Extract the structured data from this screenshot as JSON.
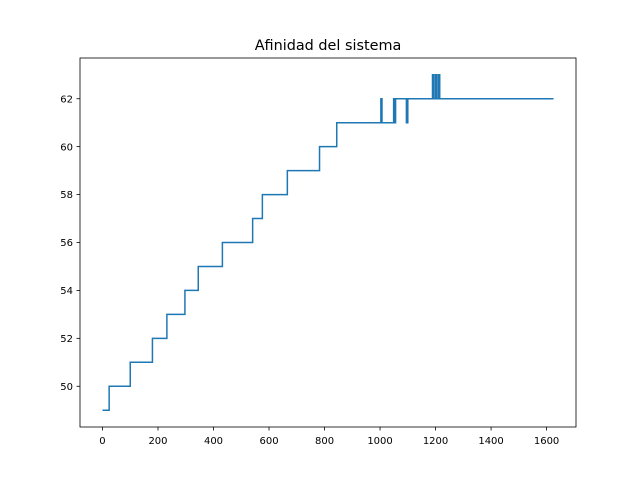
{
  "chart_data": {
    "type": "line",
    "title": "Afinidad del sistema",
    "xlabel": "",
    "ylabel": "",
    "xlim": [
      -81,
      1706
    ],
    "ylim": [
      48.3,
      63.7
    ],
    "xticks": [
      0,
      200,
      400,
      600,
      800,
      1000,
      1200,
      1400,
      1600
    ],
    "xtick_labels": [
      "0",
      "200",
      "400",
      "600",
      "800",
      "1000",
      "1200",
      "1400",
      "1600"
    ],
    "yticks": [
      50,
      52,
      54,
      56,
      58,
      60,
      62
    ],
    "ytick_labels": [
      "50",
      "52",
      "54",
      "56",
      "58",
      "60",
      "62"
    ],
    "grid": false,
    "legend": "none",
    "series": [
      {
        "color": "#1f77b4",
        "drawstyle": "steps-post",
        "x": [
          0,
          24,
          100,
          180,
          232,
          297,
          345,
          432,
          541,
          576,
          666,
          782,
          844,
          1003,
          1007,
          1011,
          1049,
          1053,
          1056,
          1058,
          1095,
          1100,
          1189,
          1193,
          1199,
          1204,
          1210,
          1215,
          1625
        ],
        "y": [
          49,
          50,
          51,
          52,
          53,
          54,
          55,
          56,
          57,
          58,
          59,
          60,
          61,
          62,
          61,
          61,
          62,
          61,
          62,
          62,
          61,
          62,
          63,
          62,
          63,
          62,
          63,
          62,
          62
        ]
      }
    ]
  }
}
